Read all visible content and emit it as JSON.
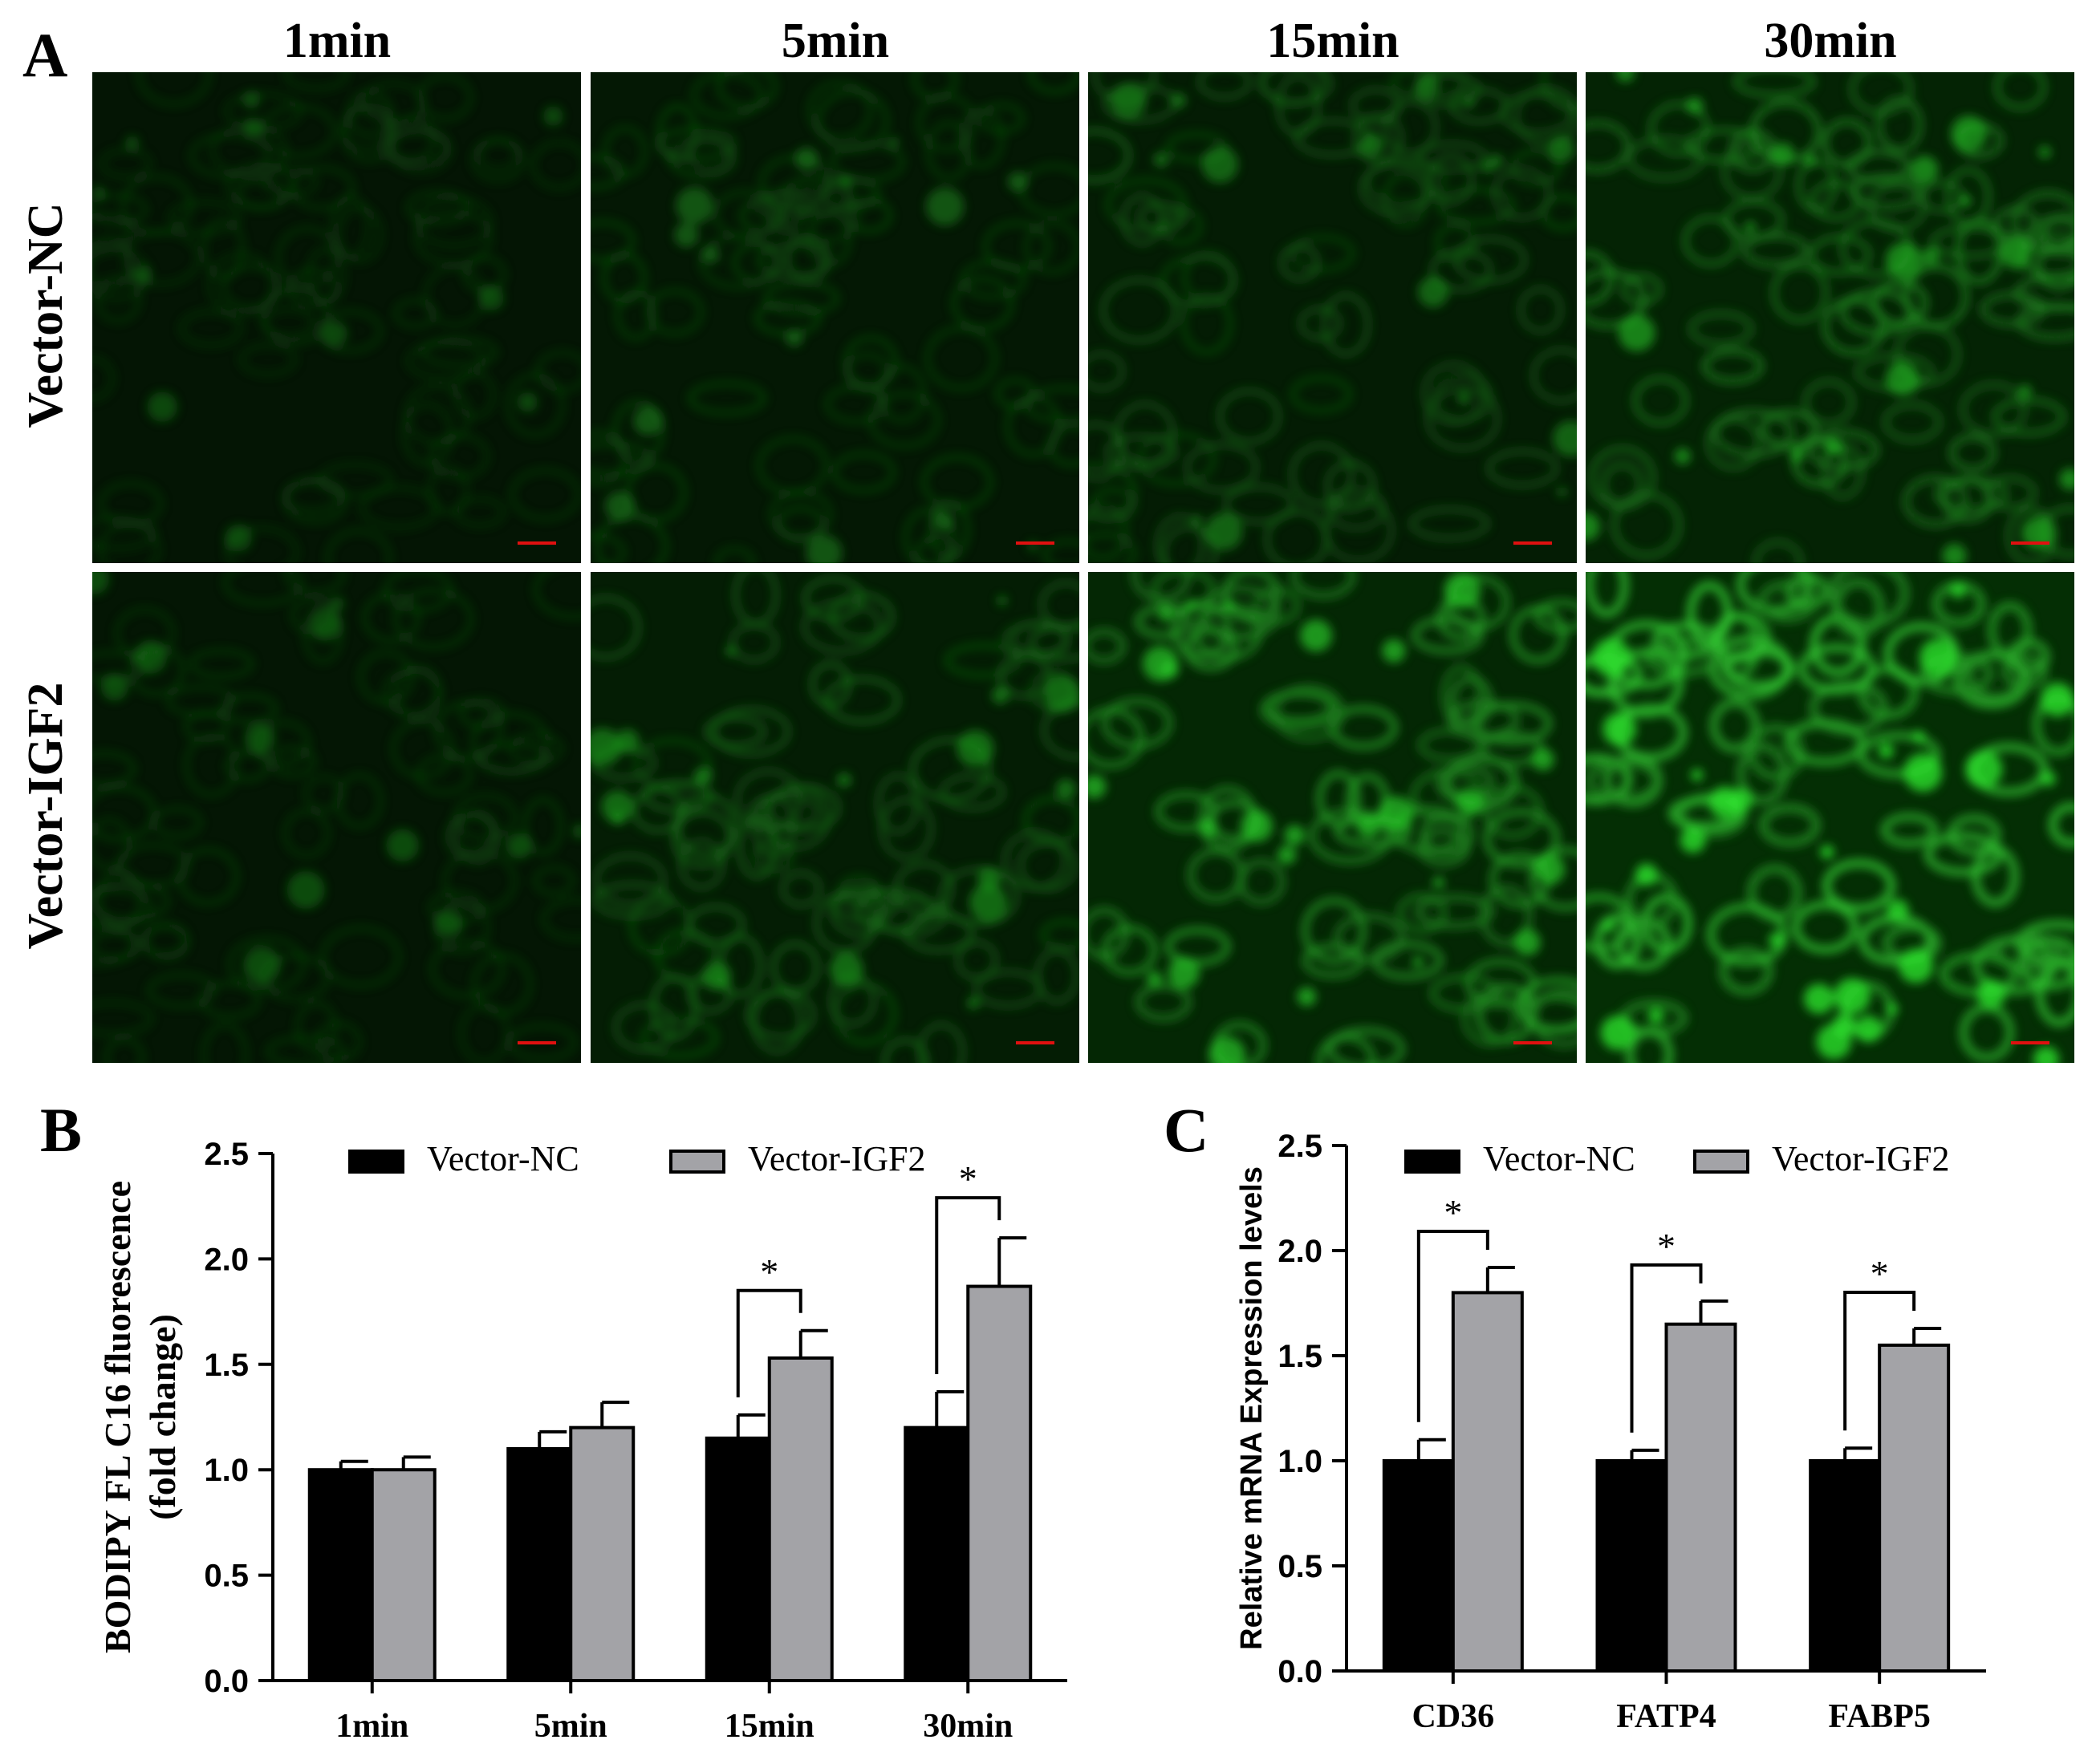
{
  "panels": {
    "a": "A",
    "b": "B",
    "c": "C"
  },
  "micrographs": {
    "columns": [
      "1min",
      "5min",
      "15min",
      "30min"
    ],
    "rows": [
      "Vector-NC",
      "Vector-IGF2"
    ],
    "brightness": [
      [
        0.18,
        0.26,
        0.34,
        0.52
      ],
      [
        0.2,
        0.38,
        0.62,
        0.8
      ]
    ],
    "scale_bar_color": "#e01010",
    "green": "#22d422"
  },
  "chart_data": [
    {
      "id": "B",
      "type": "bar",
      "categories": [
        "1min",
        "5min",
        "15min",
        "30min"
      ],
      "series": [
        {
          "name": "Vector-NC",
          "values": [
            1.0,
            1.1,
            1.15,
            1.2
          ],
          "errors": [
            0.04,
            0.08,
            0.11,
            0.17
          ],
          "color": "#000000"
        },
        {
          "name": "Vector-IGF2",
          "values": [
            1.0,
            1.2,
            1.53,
            1.87
          ],
          "errors": [
            0.06,
            0.12,
            0.13,
            0.23
          ],
          "color": "#a3a3a7"
        }
      ],
      "ylabel": "BODIPY FL C16 fluorescence (fold change)",
      "ylabel_lines": [
        "BODIPY FL C16 fluorescence",
        "(fold change)"
      ],
      "ylim": [
        0,
        2.5
      ],
      "yticks": [
        "0.0",
        "0.5",
        "1.0",
        "1.5",
        "2.0",
        "2.5"
      ],
      "significance": [
        {
          "category": "15min",
          "label": "*"
        },
        {
          "category": "30min",
          "label": "*"
        }
      ],
      "legend": "top"
    },
    {
      "id": "C",
      "type": "bar",
      "categories": [
        "CD36",
        "FATP4",
        "FABP5"
      ],
      "series": [
        {
          "name": "Vector-NC",
          "values": [
            1.0,
            1.0,
            1.0
          ],
          "errors": [
            0.1,
            0.05,
            0.06
          ],
          "color": "#000000"
        },
        {
          "name": "Vector-IGF2",
          "values": [
            1.8,
            1.65,
            1.55
          ],
          "errors": [
            0.12,
            0.11,
            0.08
          ],
          "color": "#a3a3a7"
        }
      ],
      "ylabel": "Relative mRNA Expression levels",
      "ylim": [
        0,
        2.5
      ],
      "yticks": [
        "0.0",
        "0.5",
        "1.0",
        "1.5",
        "2.0",
        "2.5"
      ],
      "significance": [
        {
          "category": "CD36",
          "label": "*"
        },
        {
          "category": "FATP4",
          "label": "*"
        },
        {
          "category": "FABP5",
          "label": "*"
        }
      ],
      "legend": "top"
    }
  ]
}
